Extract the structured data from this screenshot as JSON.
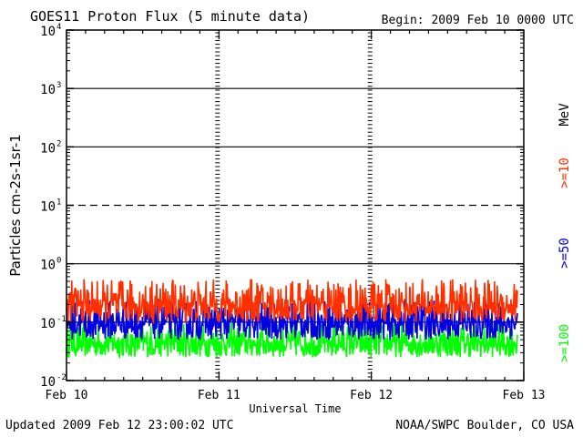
{
  "header": {
    "title": "GOES11 Proton Flux (5 minute data)",
    "begin": "Begin: 2009 Feb 10 0000 UTC"
  },
  "footer": {
    "updated": "Updated 2009 Feb 12 23:00:02 UTC",
    "credit": "NOAA/SWPC Boulder, CO USA"
  },
  "chart_data": {
    "type": "line",
    "title": "GOES11 Proton Flux (5 minute data)",
    "xlabel": "Universal Time",
    "ylabel": "Particles cm-2s-1sr-1",
    "y_scale": "log",
    "ylim": [
      0.01,
      10000
    ],
    "yticks": [
      0.01,
      0.1,
      1,
      10,
      100,
      1000,
      10000
    ],
    "x_categories": [
      "Feb 10",
      "Feb 11",
      "Feb 12",
      "Feb 13"
    ],
    "xlim_days": [
      0,
      3
    ],
    "data_end_day": 2.958,
    "unit_label": "MeV",
    "grid": "horizontal lines at decades; dashed at 10",
    "series": [
      {
        "name": ">=10",
        "color": "#ff3000",
        "y_min": 0.1,
        "y_median": 0.2,
        "y_max": 0.55
      },
      {
        "name": ">=50",
        "color": "#0000e0",
        "y_min": 0.05,
        "y_median": 0.1,
        "y_max": 0.25
      },
      {
        "name": ">=100",
        "color": "#00ff00",
        "y_min": 0.025,
        "y_median": 0.045,
        "y_max": 0.1
      }
    ]
  }
}
